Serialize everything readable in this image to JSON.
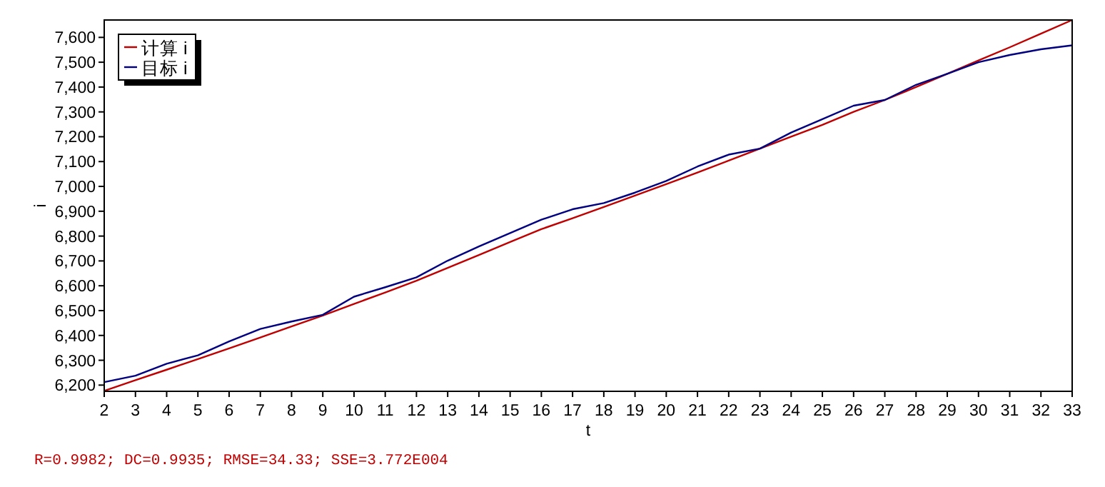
{
  "chart_data": {
    "type": "line",
    "xlabel": "t",
    "ylabel": "i",
    "x": [
      2,
      3,
      4,
      5,
      6,
      7,
      8,
      9,
      10,
      11,
      12,
      13,
      14,
      15,
      16,
      17,
      18,
      19,
      20,
      21,
      22,
      23,
      24,
      25,
      26,
      27,
      28,
      29,
      30,
      31,
      32,
      33
    ],
    "series": [
      {
        "name": "计算 i",
        "color": "#c00000",
        "values": [
          6177,
          6220,
          6262,
          6305,
          6348,
          6392,
          6436,
          6480,
          6527,
          6573,
          6620,
          6672,
          6724,
          6776,
          6828,
          6872,
          6917,
          6963,
          7009,
          7056,
          7104,
          7152,
          7200,
          7248,
          7300,
          7348,
          7400,
          7453,
          7507,
          7560,
          7615,
          7670
        ]
      },
      {
        "name": "目标 i",
        "color": "#000080",
        "values": [
          6212,
          6238,
          6286,
          6320,
          6376,
          6426,
          6456,
          6483,
          6556,
          6594,
          6634,
          6701,
          6758,
          6812,
          6866,
          6908,
          6933,
          6975,
          7022,
          7080,
          7128,
          7152,
          7217,
          7271,
          7325,
          7348,
          7409,
          7453,
          7500,
          7529,
          7552,
          7568
        ]
      }
    ],
    "xlim": [
      2,
      33
    ],
    "xticks": [
      2,
      3,
      4,
      5,
      6,
      7,
      8,
      9,
      10,
      11,
      12,
      13,
      14,
      15,
      16,
      17,
      18,
      19,
      20,
      21,
      22,
      23,
      24,
      25,
      26,
      27,
      28,
      29,
      30,
      31,
      32,
      33
    ],
    "ylim": [
      6175,
      7670
    ],
    "yticks": [
      {
        "value": 6200,
        "label": "6,200"
      },
      {
        "value": 6300,
        "label": "6,300"
      },
      {
        "value": 6400,
        "label": "6,400"
      },
      {
        "value": 6500,
        "label": "6,500"
      },
      {
        "value": 6600,
        "label": "6,600"
      },
      {
        "value": 6700,
        "label": "6,700"
      },
      {
        "value": 6800,
        "label": "6,800"
      },
      {
        "value": 6900,
        "label": "6,900"
      },
      {
        "value": 7000,
        "label": "7,000"
      },
      {
        "value": 7100,
        "label": "7,100"
      },
      {
        "value": 7200,
        "label": "7,200"
      },
      {
        "value": 7300,
        "label": "7,300"
      },
      {
        "value": 7400,
        "label": "7,400"
      },
      {
        "value": 7500,
        "label": "7,500"
      },
      {
        "value": 7600,
        "label": "7,600"
      }
    ],
    "grid": false,
    "legend": "top left",
    "annotations": [
      "R=0.9982; DC=0.9935; RMSE=34.33; SSE=3.772E004"
    ]
  }
}
